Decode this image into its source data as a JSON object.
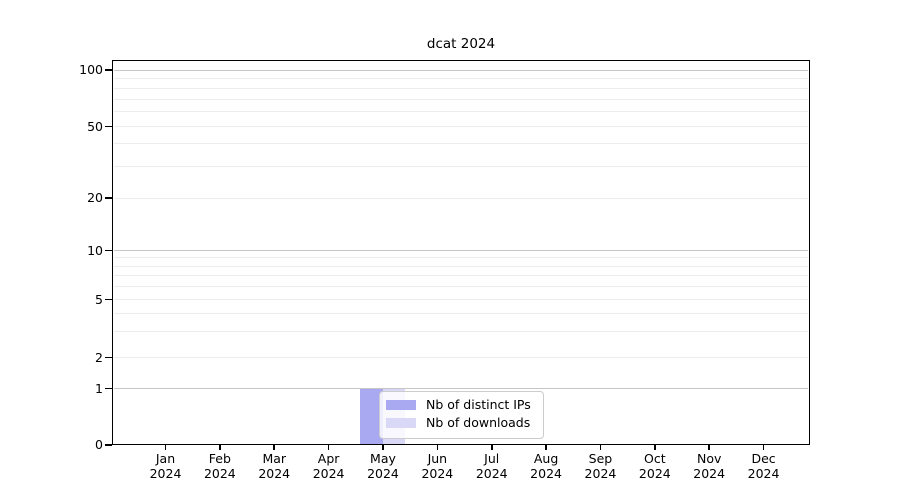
{
  "chart_data": {
    "type": "bar",
    "title": "dcat 2024",
    "categories": [
      "Jan 2024",
      "Feb 2024",
      "Mar 2024",
      "Apr 2024",
      "May 2024",
      "Jun 2024",
      "Jul 2024",
      "Aug 2024",
      "Sep 2024",
      "Oct 2024",
      "Nov 2024",
      "Dec 2024"
    ],
    "series": [
      {
        "name": "Nb of distinct IPs",
        "color": "#a9a9f2",
        "values": [
          0,
          0,
          0,
          0,
          1,
          0,
          0,
          0,
          0,
          0,
          0,
          0
        ]
      },
      {
        "name": "Nb of downloads",
        "color": "#d9d9f7",
        "values": [
          0,
          0,
          0,
          0,
          1,
          0,
          0,
          0,
          0,
          0,
          0,
          0
        ]
      }
    ],
    "xlabel": "",
    "ylabel": "",
    "yscale": "symlog",
    "ylim": [
      0,
      120
    ],
    "yticks_labeled": [
      0,
      1,
      2,
      5,
      10,
      20,
      50,
      100
    ],
    "gridlines_major": [
      1,
      10,
      100
    ],
    "gridlines_minor": [
      2,
      3,
      4,
      5,
      6,
      7,
      8,
      9,
      20,
      30,
      40,
      50,
      60,
      70,
      80,
      90
    ],
    "grid": "horizontal on",
    "legend": {
      "position": "lower center inside",
      "items": [
        "Nb of distinct IPs",
        "Nb of downloads"
      ]
    },
    "colors": {
      "bar_distinct_ips": "#a9a9f2",
      "bar_downloads": "#d9d9f7",
      "major_grid": "#c6c6c6",
      "minor_grid": "#ececec",
      "axis": "#000000",
      "background": "#ffffff"
    }
  }
}
